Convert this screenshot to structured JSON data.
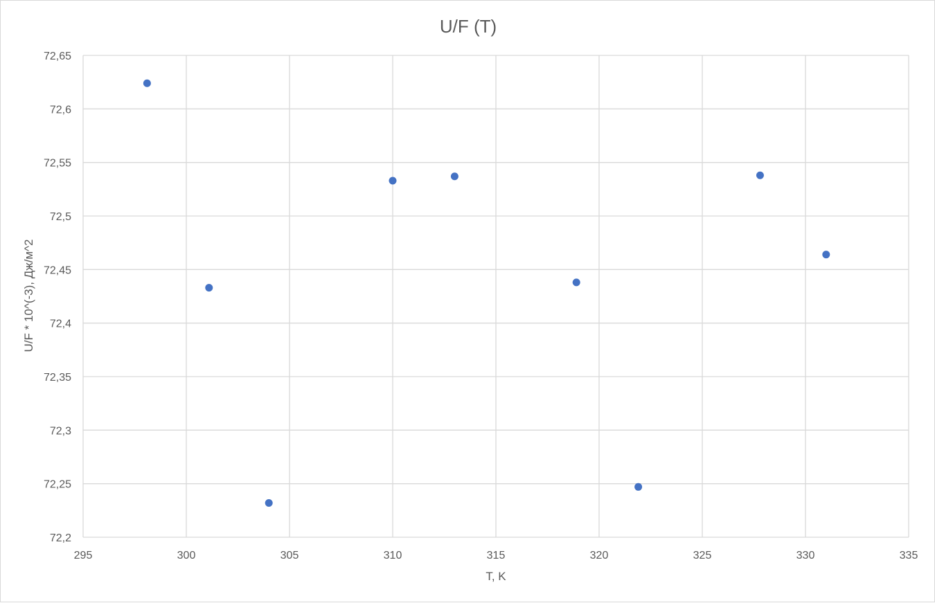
{
  "chart_data": {
    "type": "scatter",
    "title": "U/F (T)",
    "xlabel": "T, K",
    "ylabel": "U/F * 10^(-3), Дж/м^2",
    "xlim": [
      295,
      335
    ],
    "ylim": [
      72.2,
      72.65
    ],
    "x_ticks": [
      295,
      300,
      305,
      310,
      315,
      320,
      325,
      330,
      335
    ],
    "x_tick_labels": [
      "295",
      "300",
      "305",
      "310",
      "315",
      "320",
      "325",
      "330",
      "335"
    ],
    "y_ticks": [
      72.2,
      72.25,
      72.3,
      72.35,
      72.4,
      72.45,
      72.5,
      72.55,
      72.6,
      72.65
    ],
    "y_tick_labels": [
      "72,2",
      "72,25",
      "72,3",
      "72,35",
      "72,4",
      "72,45",
      "72,5",
      "72,55",
      "72,6",
      "72,65"
    ],
    "grid": true,
    "legend": "none",
    "series": [
      {
        "name": "U/F",
        "color": "#4472c4",
        "points": [
          {
            "x": 298.1,
            "y": 72.624
          },
          {
            "x": 301.1,
            "y": 72.433
          },
          {
            "x": 304.0,
            "y": 72.232
          },
          {
            "x": 310.0,
            "y": 72.533
          },
          {
            "x": 313.0,
            "y": 72.537
          },
          {
            "x": 318.9,
            "y": 72.438
          },
          {
            "x": 321.9,
            "y": 72.247
          },
          {
            "x": 327.8,
            "y": 72.538
          },
          {
            "x": 331.0,
            "y": 72.464
          }
        ]
      }
    ]
  }
}
